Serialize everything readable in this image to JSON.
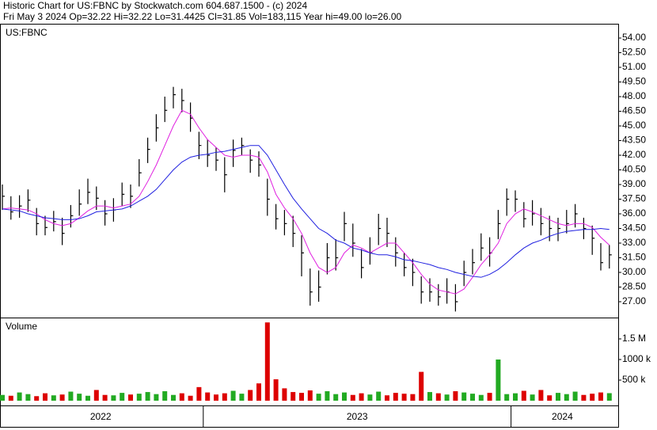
{
  "chart_data": {
    "type": "ohlc",
    "title": "Historic Chart for US:FBNC by Stockwatch.com 604.687.1500 - (c) 2024",
    "subtitle": "Fri May  3 2024  Op=32.22  Hi=32.22  Lo=31.4425  Cl=31.85  Vol=183,115  Year hi=49.00  lo=26.00",
    "symbol": "US:FBNC",
    "color": "#000000",
    "x": [
      "2022",
      "2022",
      "2022",
      "2022",
      "2022",
      "2022",
      "2022",
      "2022",
      "2022",
      "2022",
      "2022",
      "2022",
      "2022",
      "2022",
      "2022",
      "2022",
      "2022",
      "2022",
      "2022",
      "2022",
      "2022",
      "2022",
      "2022",
      "2022",
      "2023",
      "2023",
      "2023",
      "2023",
      "2023",
      "2023",
      "2023",
      "2023",
      "2023",
      "2023",
      "2023",
      "2023",
      "2023",
      "2023",
      "2023",
      "2023",
      "2023",
      "2023",
      "2023",
      "2023",
      "2023",
      "2023",
      "2023",
      "2023",
      "2023",
      "2023",
      "2023",
      "2023",
      "2023",
      "2023",
      "2023",
      "2023",
      "2023",
      "2023",
      "2023",
      "2023",
      "2024",
      "2024",
      "2024",
      "2024",
      "2024",
      "2024",
      "2024",
      "2024",
      "2024",
      "2024",
      "2024",
      "2024"
    ],
    "high": [
      39.0,
      37.8,
      37.9,
      38.5,
      36.6,
      35.8,
      36.3,
      35.6,
      36.9,
      38.5,
      39.6,
      38.8,
      37.4,
      37.6,
      39.2,
      39.0,
      41.6,
      43.8,
      46.2,
      48.0,
      49.0,
      48.8,
      47.4,
      44.4,
      43.6,
      42.8,
      41.8,
      43.6,
      43.8,
      42.6,
      42.4,
      39.6,
      37.0,
      36.4,
      35.8,
      33.8,
      30.4,
      30.2,
      33.0,
      33.4,
      36.2,
      35.0,
      32.4,
      33.6,
      36.0,
      35.6,
      33.6,
      32.0,
      31.4,
      29.6,
      29.4,
      28.8,
      29.4,
      28.8,
      31.2,
      32.4,
      34.0,
      33.6,
      36.4,
      38.6,
      38.4,
      37.2,
      37.4,
      36.6,
      35.8,
      35.6,
      36.4,
      37.0,
      35.6,
      34.8,
      33.0,
      32.8
    ],
    "low": [
      36.4,
      35.4,
      35.6,
      36.2,
      33.8,
      33.8,
      34.2,
      32.8,
      34.6,
      35.8,
      37.0,
      36.4,
      34.8,
      35.2,
      36.8,
      36.6,
      38.8,
      41.2,
      43.4,
      45.4,
      46.8,
      46.4,
      44.4,
      41.6,
      40.8,
      40.4,
      38.2,
      40.8,
      42.0,
      40.2,
      39.8,
      35.8,
      34.4,
      33.8,
      32.6,
      29.6,
      26.6,
      27.0,
      29.8,
      30.2,
      33.2,
      31.6,
      29.4,
      30.8,
      32.8,
      32.6,
      30.6,
      29.6,
      28.6,
      26.8,
      27.0,
      26.6,
      26.8,
      26.0,
      28.6,
      29.8,
      31.2,
      30.6,
      33.4,
      35.8,
      36.2,
      34.6,
      34.8,
      33.8,
      33.2,
      33.2,
      34.0,
      34.6,
      33.4,
      31.8,
      30.2,
      30.4
    ],
    "close": [
      37.8,
      36.2,
      36.8,
      37.4,
      35.0,
      34.6,
      35.2,
      34.0,
      35.8,
      37.0,
      38.2,
      37.6,
      36.0,
      36.4,
      38.0,
      37.8,
      40.2,
      42.6,
      44.8,
      46.6,
      48.2,
      47.6,
      45.8,
      43.0,
      42.0,
      41.5,
      40.0,
      42.5,
      43.0,
      41.5,
      41.0,
      37.5,
      35.5,
      35.0,
      34.0,
      32.0,
      28.0,
      28.5,
      31.5,
      31.5,
      35.0,
      33.0,
      30.5,
      32.0,
      34.5,
      34.0,
      32.0,
      30.5,
      30.0,
      28.0,
      28.0,
      27.5,
      28.0,
      27.0,
      30.0,
      31.0,
      32.5,
      32.0,
      35.0,
      37.5,
      37.5,
      35.5,
      36.0,
      35.0,
      34.5,
      34.5,
      35.0,
      36.0,
      34.5,
      33.5,
      31.0,
      31.8
    ],
    "moving_averages": [
      {
        "color": "#e020e0",
        "values": [
          36.5,
          36.6,
          36.5,
          36.4,
          36.0,
          35.4,
          35.0,
          34.8,
          35.0,
          35.6,
          36.3,
          36.8,
          36.8,
          36.6,
          36.8,
          37.0,
          37.8,
          39.3,
          41.0,
          43.0,
          45.0,
          46.6,
          46.2,
          44.8,
          43.6,
          42.8,
          42.0,
          41.8,
          42.0,
          42.0,
          41.8,
          40.3,
          38.0,
          36.6,
          35.5,
          34.0,
          32.0,
          30.5,
          30.0,
          30.5,
          32.0,
          32.8,
          32.5,
          32.0,
          32.5,
          33.0,
          33.0,
          32.0,
          31.0,
          29.8,
          28.8,
          28.2,
          28.0,
          27.8,
          28.3,
          29.5,
          30.8,
          31.8,
          33.0,
          35.0,
          36.0,
          36.5,
          36.2,
          35.8,
          35.4,
          35.0,
          34.8,
          35.0,
          35.0,
          34.6,
          33.6,
          32.8
        ]
      },
      {
        "color": "#2020e0",
        "values": [
          36.5,
          36.4,
          36.3,
          36.0,
          35.8,
          35.6,
          35.5,
          35.4,
          35.4,
          35.5,
          35.8,
          36.2,
          36.3,
          36.4,
          36.5,
          36.8,
          37.3,
          37.8,
          38.5,
          39.5,
          40.5,
          41.3,
          41.8,
          42.0,
          42.1,
          42.3,
          42.4,
          42.6,
          42.8,
          43.0,
          43.0,
          42.0,
          40.5,
          39.0,
          37.6,
          36.5,
          35.5,
          34.5,
          34.0,
          33.3,
          33.0,
          32.5,
          32.3,
          32.0,
          31.8,
          31.8,
          31.6,
          31.3,
          31.2,
          31.0,
          30.8,
          30.5,
          30.3,
          30.0,
          29.8,
          29.6,
          29.5,
          29.8,
          30.3,
          31.0,
          31.8,
          32.5,
          33.0,
          33.3,
          33.7,
          34.0,
          34.2,
          34.3,
          34.4,
          34.4,
          34.5,
          34.4
        ]
      }
    ],
    "ylim": [
      25.46,
      55.3
    ],
    "yticks": [
      {
        "value": 27,
        "label": "27.00"
      },
      {
        "value": 28.5,
        "label": "28.50"
      },
      {
        "value": 30,
        "label": "30.00"
      },
      {
        "value": 31.5,
        "label": "31.50"
      },
      {
        "value": 33,
        "label": "33.00"
      },
      {
        "value": 34.5,
        "label": "34.50"
      },
      {
        "value": 36,
        "label": "36.00"
      },
      {
        "value": 37.5,
        "label": "37.50"
      },
      {
        "value": 39,
        "label": "39.00"
      },
      {
        "value": 40.5,
        "label": "40.50"
      },
      {
        "value": 42,
        "label": "42.00"
      },
      {
        "value": 43.5,
        "label": "43.50"
      },
      {
        "value": 45,
        "label": "45.00"
      },
      {
        "value": 46.5,
        "label": "46.50"
      },
      {
        "value": 48,
        "label": "48.00"
      },
      {
        "value": 49.5,
        "label": "49.50"
      },
      {
        "value": 51,
        "label": "51.00"
      },
      {
        "value": 52.5,
        "label": "52.50"
      },
      {
        "value": 54,
        "label": "54.00"
      }
    ],
    "volume": {
      "label": "Volume",
      "up_color": "#22aa22",
      "down_color": "#dd0000",
      "values": [
        140000,
        120000,
        200000,
        160000,
        110000,
        180000,
        130000,
        150000,
        220000,
        170000,
        120000,
        260000,
        140000,
        130000,
        190000,
        150000,
        170000,
        210000,
        160000,
        230000,
        140000,
        180000,
        120000,
        330000,
        200000,
        150000,
        180000,
        240000,
        170000,
        260000,
        420000,
        1900000,
        520000,
        300000,
        210000,
        190000,
        250000,
        170000,
        230000,
        160000,
        200000,
        140000,
        180000,
        150000,
        220000,
        130000,
        190000,
        170000,
        160000,
        700000,
        210000,
        180000,
        150000,
        230000,
        200000,
        170000,
        140000,
        190000,
        1000000,
        160000,
        180000,
        240000,
        150000,
        260000,
        130000,
        190000,
        160000,
        220000,
        140000,
        170000,
        200000,
        183115
      ],
      "ylim": [
        0,
        1980000
      ],
      "yticks": [
        {
          "value": 500000,
          "label": "500 k"
        },
        {
          "value": 1000000,
          "label": "1000 k"
        },
        {
          "value": 1500000,
          "label": "1.5 M"
        }
      ]
    }
  }
}
